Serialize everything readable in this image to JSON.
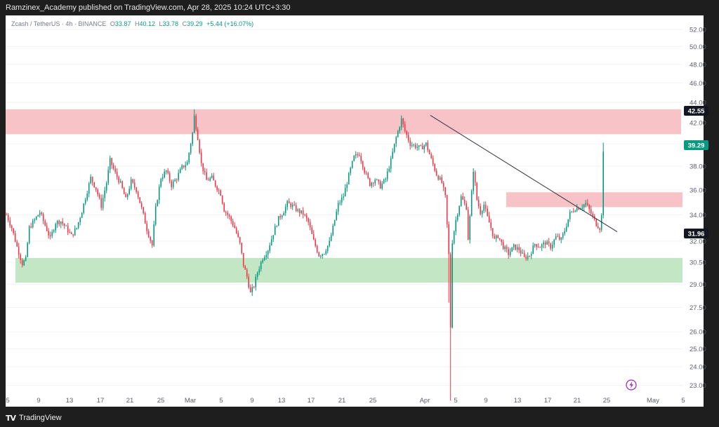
{
  "header": {
    "published_text": "Ramzinex_Academy published on TradingView.com, Apr 28, 2025 10:24 UTC+3:30"
  },
  "legend": {
    "symbol": "Zcash / TetherUS · 4h · BINANCE",
    "open_label": "O",
    "open": "33.87",
    "high_label": "H",
    "high": "40.12",
    "low_label": "L",
    "low": "33.78",
    "close_label": "C",
    "close": "39.29",
    "change": "+5.44 (+16.07%)"
  },
  "footer": {
    "brand": "TradingView",
    "logo_icon": "tradingview-logo-icon"
  },
  "colors": {
    "up": "#089981",
    "down": "#f23645",
    "resistance_zone": "#f7b8bd",
    "support_zone": "#bde3bf"
  },
  "chart_data": {
    "type": "candlestick",
    "symbol": "Zcash / TetherUS",
    "interval": "4h",
    "exchange": "BINANCE",
    "yscale": "log",
    "ylim": [
      21.9,
      53.7
    ],
    "y_ticks": [
      "52.00",
      "50.00",
      "48.00",
      "46.00",
      "44.00",
      "42.00",
      "40.00",
      "38.00",
      "36.00",
      "34.00",
      "32.00",
      "30.50",
      "29.00",
      "27.50",
      "26.00",
      "25.00",
      "24.00",
      "23.00"
    ],
    "x_ticks": [
      "5",
      "9",
      "13",
      "17",
      "21",
      "25",
      "Mar",
      "5",
      "9",
      "13",
      "17",
      "21",
      "25",
      "Apr",
      "5",
      "9",
      "13",
      "17",
      "21",
      "25",
      "May",
      "5"
    ],
    "price_labels": [
      {
        "value": "42.55",
        "style": "dark"
      },
      {
        "value": "39.29",
        "style": "green"
      },
      {
        "value": "31.96",
        "style": "dark"
      }
    ],
    "zones": [
      {
        "name": "resistance",
        "from": 40.9,
        "to": 43.3
      },
      {
        "name": "mini-resistance",
        "from": 34.6,
        "to": 35.8
      },
      {
        "name": "support",
        "from": 29.1,
        "to": 30.8
      }
    ],
    "trendline": {
      "from": [
        "Apr 1",
        42.7
      ],
      "to": [
        "Apr 28",
        32.7
      ]
    },
    "price_path": [
      [
        0,
        34.0
      ],
      [
        3,
        33.0
      ],
      [
        6,
        31.6
      ],
      [
        9,
        30.4
      ],
      [
        11,
        30.7
      ],
      [
        13,
        33.0
      ],
      [
        16,
        33.6
      ],
      [
        19,
        34.2
      ],
      [
        22,
        33.2
      ],
      [
        25,
        32.2
      ],
      [
        28,
        33.4
      ],
      [
        31,
        33.5
      ],
      [
        34,
        33.0
      ],
      [
        37,
        32.4
      ],
      [
        40,
        33.0
      ],
      [
        43,
        34.3
      ],
      [
        46,
        35.9
      ],
      [
        48,
        37.0
      ],
      [
        51,
        36.1
      ],
      [
        54,
        34.7
      ],
      [
        57,
        36.6
      ],
      [
        59,
        38.5
      ],
      [
        62,
        37.4
      ],
      [
        65,
        36.5
      ],
      [
        68,
        35.2
      ],
      [
        71,
        36.7
      ],
      [
        74,
        36.0
      ],
      [
        77,
        34.5
      ],
      [
        80,
        32.9
      ],
      [
        83,
        31.7
      ],
      [
        85,
        34.5
      ],
      [
        88,
        37.0
      ],
      [
        91,
        37.6
      ],
      [
        94,
        36.4
      ],
      [
        97,
        37.0
      ],
      [
        100,
        37.9
      ],
      [
        103,
        38.3
      ],
      [
        106,
        41.0
      ],
      [
        107,
        42.6
      ],
      [
        109,
        40.6
      ],
      [
        111,
        38.2
      ],
      [
        114,
        36.8
      ],
      [
        117,
        37.0
      ],
      [
        119,
        36.4
      ],
      [
        122,
        35.7
      ],
      [
        124,
        34.4
      ],
      [
        127,
        33.8
      ],
      [
        130,
        33.0
      ],
      [
        133,
        31.8
      ],
      [
        135,
        30.3
      ],
      [
        137,
        29.5
      ],
      [
        139,
        28.4
      ],
      [
        141,
        28.9
      ],
      [
        143,
        29.8
      ],
      [
        146,
        30.8
      ],
      [
        149,
        31.4
      ],
      [
        152,
        32.6
      ],
      [
        155,
        33.7
      ],
      [
        158,
        34.3
      ],
      [
        160,
        34.9
      ],
      [
        163,
        34.7
      ],
      [
        166,
        34.3
      ],
      [
        169,
        34.1
      ],
      [
        172,
        33.4
      ],
      [
        175,
        32.0
      ],
      [
        178,
        31.0
      ],
      [
        181,
        31.2
      ],
      [
        184,
        31.9
      ],
      [
        186,
        33.0
      ],
      [
        189,
        34.8
      ],
      [
        192,
        35.5
      ],
      [
        195,
        37.2
      ],
      [
        198,
        38.8
      ],
      [
        201,
        39.1
      ],
      [
        204,
        37.6
      ],
      [
        207,
        36.5
      ],
      [
        210,
        36.9
      ],
      [
        213,
        36.3
      ],
      [
        216,
        36.9
      ],
      [
        219,
        38.5
      ],
      [
        222,
        40.6
      ],
      [
        225,
        42.3
      ],
      [
        227,
        41.2
      ],
      [
        230,
        40.0
      ],
      [
        233,
        39.8
      ],
      [
        236,
        39.6
      ],
      [
        239,
        40.0
      ],
      [
        242,
        38.6
      ],
      [
        245,
        37.3
      ],
      [
        248,
        36.6
      ],
      [
        250,
        35.4
      ],
      [
        252,
        31.0
      ],
      [
        253,
        26.3
      ],
      [
        254,
        32.0
      ],
      [
        256,
        33.6
      ],
      [
        259,
        35.4
      ],
      [
        262,
        34.6
      ],
      [
        263,
        32.2
      ],
      [
        264,
        33.8
      ],
      [
        266,
        37.7
      ],
      [
        268,
        35.2
      ],
      [
        270,
        34.2
      ],
      [
        272,
        34.8
      ],
      [
        274,
        33.8
      ],
      [
        276,
        33.0
      ],
      [
        278,
        32.1
      ],
      [
        280,
        32.4
      ],
      [
        283,
        31.6
      ],
      [
        286,
        31.1
      ],
      [
        289,
        31.6
      ],
      [
        292,
        31.4
      ],
      [
        295,
        30.8
      ],
      [
        298,
        31.0
      ],
      [
        301,
        31.8
      ],
      [
        304,
        31.6
      ],
      [
        307,
        31.9
      ],
      [
        310,
        31.6
      ],
      [
        313,
        32.3
      ],
      [
        316,
        32.1
      ],
      [
        318,
        32.8
      ],
      [
        321,
        34.1
      ],
      [
        324,
        34.5
      ],
      [
        327,
        34.6
      ],
      [
        330,
        34.9
      ],
      [
        333,
        34.1
      ],
      [
        336,
        33.3
      ],
      [
        338,
        33.0
      ],
      [
        339,
        33.9
      ],
      [
        340,
        39.3
      ]
    ]
  }
}
